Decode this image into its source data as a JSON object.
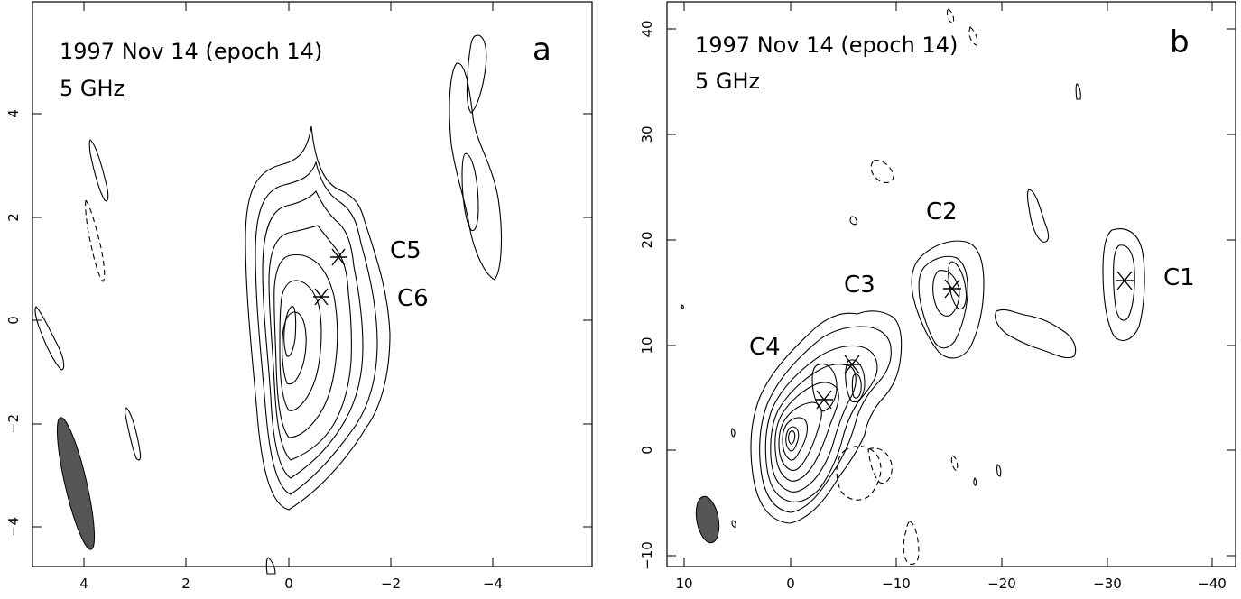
{
  "figure": {
    "panel_a": {
      "epoch_label": "1997 Nov 14 (epoch 14)",
      "freq_label": "5 GHz",
      "panel_letter": "a",
      "component_labels": [
        "C5",
        "C6"
      ],
      "x_ticks": [
        "4",
        "2",
        "0",
        "−2",
        "−4"
      ],
      "y_ticks": [
        "4",
        "2",
        "0",
        "−2",
        "−4"
      ]
    },
    "panel_b": {
      "epoch_label": "1997 Nov 14 (epoch 14)",
      "freq_label": "5 GHz",
      "panel_letter": "b",
      "component_labels": [
        "C1",
        "C2",
        "C3",
        "C4"
      ],
      "x_ticks": [
        "10",
        "0",
        "−10",
        "−20",
        "−30",
        "−40"
      ],
      "y_ticks": [
        "40",
        "30",
        "20",
        "10",
        "0",
        "−10"
      ]
    }
  }
}
